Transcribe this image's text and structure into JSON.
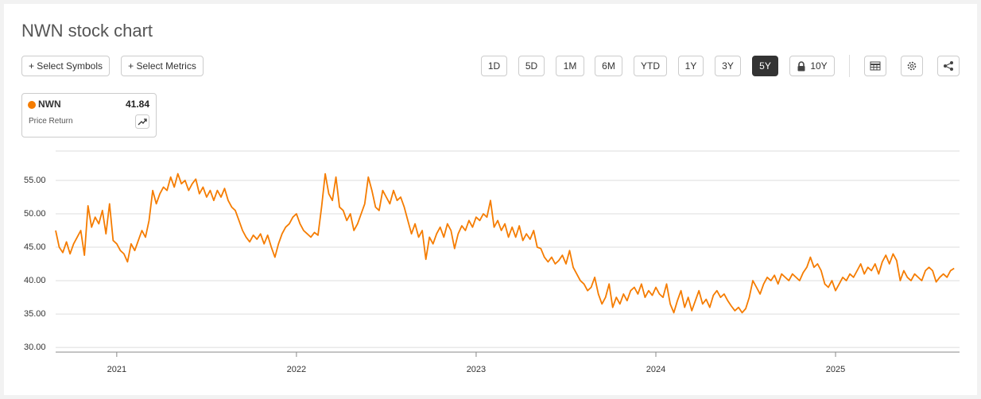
{
  "chart_data": {
    "type": "line",
    "title": "NWN stock chart",
    "x": [
      2020.66,
      2020.68,
      2020.7,
      2020.72,
      2020.74,
      2020.76,
      2020.78,
      2020.8,
      2020.82,
      2020.84,
      2020.86,
      2020.88,
      2020.9,
      2020.92,
      2020.94,
      2020.96,
      2020.98,
      2021.0,
      2021.02,
      2021.04,
      2021.06,
      2021.08,
      2021.1,
      2021.12,
      2021.14,
      2021.16,
      2021.18,
      2021.2,
      2021.22,
      2021.24,
      2021.26,
      2021.28,
      2021.3,
      2021.32,
      2021.34,
      2021.36,
      2021.38,
      2021.4,
      2021.42,
      2021.44,
      2021.46,
      2021.48,
      2021.5,
      2021.52,
      2021.54,
      2021.56,
      2021.58,
      2021.6,
      2021.62,
      2021.64,
      2021.66,
      2021.68,
      2021.7,
      2021.72,
      2021.74,
      2021.76,
      2021.78,
      2021.8,
      2021.82,
      2021.84,
      2021.86,
      2021.88,
      2021.9,
      2021.92,
      2021.94,
      2021.96,
      2021.98,
      2022.0,
      2022.02,
      2022.04,
      2022.06,
      2022.08,
      2022.1,
      2022.12,
      2022.14,
      2022.16,
      2022.18,
      2022.2,
      2022.22,
      2022.24,
      2022.26,
      2022.28,
      2022.3,
      2022.32,
      2022.34,
      2022.36,
      2022.38,
      2022.4,
      2022.42,
      2022.44,
      2022.46,
      2022.48,
      2022.5,
      2022.52,
      2022.54,
      2022.56,
      2022.58,
      2022.6,
      2022.62,
      2022.64,
      2022.66,
      2022.68,
      2022.7,
      2022.72,
      2022.74,
      2022.76,
      2022.78,
      2022.8,
      2022.82,
      2022.84,
      2022.86,
      2022.88,
      2022.9,
      2022.92,
      2022.94,
      2022.96,
      2022.98,
      2023.0,
      2023.02,
      2023.04,
      2023.06,
      2023.08,
      2023.1,
      2023.12,
      2023.14,
      2023.16,
      2023.18,
      2023.2,
      2023.22,
      2023.24,
      2023.26,
      2023.28,
      2023.3,
      2023.32,
      2023.34,
      2023.36,
      2023.38,
      2023.4,
      2023.42,
      2023.44,
      2023.46,
      2023.48,
      2023.5,
      2023.52,
      2023.54,
      2023.56,
      2023.58,
      2023.6,
      2023.62,
      2023.64,
      2023.66,
      2023.68,
      2023.7,
      2023.72,
      2023.74,
      2023.76,
      2023.78,
      2023.8,
      2023.82,
      2023.84,
      2023.86,
      2023.88,
      2023.9,
      2023.92,
      2023.94,
      2023.96,
      2023.98,
      2024.0,
      2024.02,
      2024.04,
      2024.06,
      2024.08,
      2024.1,
      2024.12,
      2024.14,
      2024.16,
      2024.18,
      2024.2,
      2024.22,
      2024.24,
      2024.26,
      2024.28,
      2024.3,
      2024.32,
      2024.34,
      2024.36,
      2024.38,
      2024.4,
      2024.42,
      2024.44,
      2024.46,
      2024.48,
      2024.5,
      2024.52,
      2024.54,
      2024.56,
      2024.58,
      2024.6,
      2024.62,
      2024.64,
      2024.66,
      2024.68,
      2024.7,
      2024.72,
      2024.74,
      2024.76,
      2024.78,
      2024.8,
      2024.82,
      2024.84,
      2024.86,
      2024.88,
      2024.9,
      2024.92,
      2024.94,
      2024.96,
      2024.98,
      2025.0,
      2025.02,
      2025.04,
      2025.06,
      2025.08,
      2025.1,
      2025.12,
      2025.14,
      2025.16,
      2025.18,
      2025.2,
      2025.22,
      2025.24,
      2025.26,
      2025.28,
      2025.3,
      2025.32,
      2025.34,
      2025.36,
      2025.38,
      2025.4,
      2025.42,
      2025.44,
      2025.46,
      2025.48,
      2025.5,
      2025.52,
      2025.54,
      2025.56,
      2025.58,
      2025.6,
      2025.62,
      2025.64,
      2025.66
    ],
    "series": [
      {
        "name": "NWN",
        "color": "#f57c00",
        "values": [
          47.5,
          45.0,
          44.2,
          45.8,
          44.0,
          45.5,
          46.5,
          47.5,
          43.8,
          51.2,
          48.0,
          49.5,
          48.5,
          50.5,
          47.0,
          51.5,
          46.0,
          45.5,
          44.5,
          44.0,
          42.8,
          45.5,
          44.5,
          46.0,
          47.5,
          46.5,
          49.0,
          53.5,
          51.5,
          53.0,
          54.0,
          53.5,
          55.5,
          54.0,
          56.0,
          54.5,
          55.0,
          53.5,
          54.5,
          55.2,
          53.0,
          54.0,
          52.5,
          53.5,
          52.0,
          53.5,
          52.5,
          53.8,
          52.0,
          51.0,
          50.5,
          49.0,
          47.5,
          46.5,
          45.8,
          46.8,
          46.2,
          47.0,
          45.5,
          46.8,
          45.0,
          43.5,
          45.5,
          47.0,
          48.0,
          48.5,
          49.5,
          50.0,
          48.5,
          47.5,
          47.0,
          46.5,
          47.2,
          46.8,
          51.0,
          56.0,
          53.0,
          52.0,
          55.5,
          51.0,
          50.5,
          49.0,
          50.0,
          47.5,
          48.5,
          50.0,
          51.5,
          55.5,
          53.5,
          51.0,
          50.5,
          53.5,
          52.5,
          51.5,
          53.5,
          52.0,
          52.5,
          51.0,
          49.0,
          47.0,
          48.5,
          46.5,
          47.5,
          43.2,
          46.5,
          45.5,
          47.0,
          48.0,
          46.5,
          48.5,
          47.5,
          44.8,
          47.0,
          48.2,
          47.5,
          49.0,
          48.0,
          49.5,
          49.0,
          50.0,
          49.5,
          52.0,
          48.0,
          49.0,
          47.5,
          48.5,
          46.5,
          48.0,
          46.5,
          48.2,
          46.0,
          47.0,
          46.2,
          47.5,
          45.0,
          44.8,
          43.5,
          42.8,
          43.5,
          42.5,
          43.0,
          43.8,
          42.5,
          44.5,
          42.0,
          41.0,
          40.0,
          39.5,
          38.5,
          39.0,
          40.5,
          38.0,
          36.5,
          37.5,
          39.5,
          36.0,
          37.5,
          36.5,
          38.0,
          37.0,
          38.5,
          39.0,
          38.0,
          39.5,
          37.5,
          38.5,
          37.8,
          39.0,
          38.0,
          37.5,
          39.5,
          36.5,
          35.2,
          37.0,
          38.5,
          36.0,
          37.5,
          35.5,
          37.0,
          38.5,
          36.5,
          37.2,
          36.0,
          37.8,
          38.5,
          37.5,
          38.0,
          37.0,
          36.2,
          35.5,
          36.0,
          35.2,
          35.8,
          37.5,
          40.0,
          39.0,
          38.0,
          39.5,
          40.5,
          40.0,
          40.8,
          39.5,
          41.0,
          40.5,
          40.0,
          41.0,
          40.5,
          40.0,
          41.2,
          42.0,
          43.5,
          42.0,
          42.5,
          41.5,
          39.5,
          39.0,
          40.0,
          38.5,
          39.5,
          40.5,
          40.0,
          41.0,
          40.5,
          41.5,
          42.5,
          41.0,
          42.0,
          41.5,
          42.5,
          41.0,
          42.8,
          43.8,
          42.5,
          44.0,
          43.0,
          40.0,
          41.5,
          40.5,
          40.0,
          41.0,
          40.5,
          40.0,
          41.5,
          42.0,
          41.5,
          39.8,
          40.5,
          41.0,
          40.5,
          41.5,
          41.84
        ]
      }
    ],
    "xlim": [
      2020.66,
      2025.69
    ],
    "xticks": [
      2021,
      2022,
      2023,
      2024,
      2025
    ],
    "ylim": [
      29.3,
      59.4
    ],
    "yticks": [
      {
        "value": 30,
        "label": "30.00"
      },
      {
        "value": 35,
        "label": "35.00"
      },
      {
        "value": 40,
        "label": "40.00"
      },
      {
        "value": 45,
        "label": "45.00"
      },
      {
        "value": 50,
        "label": "50.00"
      },
      {
        "value": 55,
        "label": "55.00"
      }
    ],
    "grid": true
  },
  "ui": {
    "buttons": [
      "+ Select Symbols",
      "+ Select Metrics"
    ],
    "ranges": [
      "1D",
      "5D",
      "1M",
      "6M",
      "YTD",
      "1Y",
      "3Y",
      "5Y",
      "10Y"
    ],
    "active_range": "5Y",
    "legend_value": "41.84",
    "legend_subtitle": "Price Return"
  }
}
